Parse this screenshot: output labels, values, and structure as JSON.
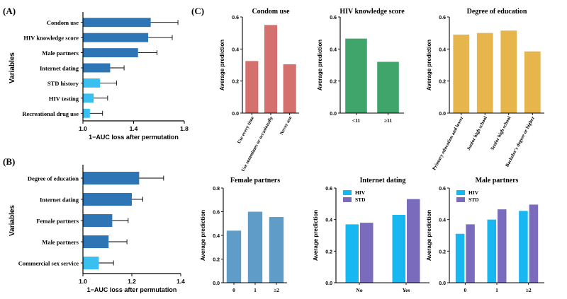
{
  "colors": {
    "dark_blue": "#2e75b6",
    "light_blue": "#39bff0",
    "condom_red": "#d4706e",
    "hiv_green": "#3fa56b",
    "edu_gold": "#e6b64d",
    "female_blue": "#5f9cc8",
    "bright_blue": "#17b7f2",
    "purple": "#7a6bbd",
    "axis": "#000000"
  },
  "chart_data": [
    {
      "id": "A",
      "panel_label": "(A)",
      "type": "bar",
      "orientation": "horizontal",
      "categories": [
        "Condom use",
        "HIV knowledge score",
        "Male partners",
        "Internet dating",
        "STD history",
        "HIV testing",
        "Recreational drug use"
      ],
      "values": [
        1.535,
        1.515,
        1.435,
        1.215,
        1.135,
        1.085,
        1.055
      ],
      "errors": [
        0.215,
        0.19,
        0.15,
        0.11,
        0.13,
        0.11,
        0.1
      ],
      "highlight": [
        false,
        false,
        false,
        false,
        true,
        true,
        true
      ],
      "xlabel": "1−AUC loss after permutation",
      "ylabel": "Variables",
      "xlim": [
        1.0,
        1.8
      ],
      "ticks": [
        "1.0",
        "1.4",
        "1.8"
      ],
      "tick_values": [
        1.0,
        1.4,
        1.8
      ]
    },
    {
      "id": "B",
      "panel_label": "(B)",
      "type": "bar",
      "orientation": "horizontal",
      "categories": [
        "Degree of education",
        "Internet dating",
        "Female partners",
        "Male partners",
        "Commercial sex service"
      ],
      "values": [
        1.23,
        1.2,
        1.12,
        1.105,
        1.065
      ],
      "errors": [
        0.1,
        0.045,
        0.065,
        0.075,
        0.06
      ],
      "highlight": [
        false,
        false,
        false,
        false,
        true
      ],
      "xlabel": "1−AUC loss after permutation",
      "ylabel": "Variables",
      "xlim": [
        1.0,
        1.4
      ],
      "ticks": [
        "1.0",
        "1.2",
        "1.4"
      ],
      "tick_values": [
        1.0,
        1.2,
        1.4
      ]
    },
    {
      "id": "C1",
      "panel_label": "(C)",
      "type": "bar",
      "title": "Condom use",
      "categories": [
        "Use every time",
        "Use sometimes or occasionally",
        "Never use"
      ],
      "values": [
        0.325,
        0.55,
        0.305
      ],
      "ylim": [
        0,
        0.6
      ],
      "yticks": [
        "0.0",
        "0.2",
        "0.4",
        "0.6"
      ],
      "ytick_values": [
        0,
        0.2,
        0.4,
        0.6
      ],
      "ylabel": "Average prediction",
      "rotate_labels": true
    },
    {
      "id": "C2",
      "type": "bar",
      "title": "HIV knowledge score",
      "categories": [
        "<11",
        "≥11"
      ],
      "values": [
        0.465,
        0.32
      ],
      "ylim": [
        0,
        0.6
      ],
      "yticks": [
        "0.0",
        "0.2",
        "0.4",
        "0.6"
      ],
      "ytick_values": [
        0,
        0.2,
        0.4,
        0.6
      ],
      "ylabel": "Average prediction",
      "rotate_labels": false
    },
    {
      "id": "C3",
      "type": "bar",
      "title": "Degree of education",
      "categories": [
        "Primary education and lower",
        "Junior high school",
        "Senior high school",
        "Bachelor's degree or higher"
      ],
      "values": [
        0.49,
        0.5,
        0.515,
        0.385
      ],
      "ylim": [
        0,
        0.6
      ],
      "yticks": [
        "0.0",
        "0.2",
        "0.4",
        "0.6"
      ],
      "ytick_values": [
        0,
        0.2,
        0.4,
        0.6
      ],
      "ylabel": "Average prediction",
      "rotate_labels": true
    },
    {
      "id": "C4",
      "type": "bar",
      "title": "Female partners",
      "categories": [
        "0",
        "1",
        "≥2"
      ],
      "values": [
        0.44,
        0.6,
        0.555
      ],
      "ylim": [
        0,
        0.8
      ],
      "yticks": [
        "0.0",
        "0.2",
        "0.4",
        "0.6",
        "0.8"
      ],
      "ytick_values": [
        0,
        0.2,
        0.4,
        0.6,
        0.8
      ],
      "ylabel": "Average prediction",
      "rotate_labels": false
    },
    {
      "id": "C5",
      "type": "grouped_bar",
      "title": "Internet dating",
      "categories": [
        "No",
        "Yes"
      ],
      "series": [
        {
          "name": "HIV",
          "values": [
            0.37,
            0.43
          ]
        },
        {
          "name": "STD",
          "values": [
            0.38,
            0.53
          ]
        }
      ],
      "ylim": [
        0,
        0.6
      ],
      "yticks": [
        "0.0",
        "0.2",
        "0.4",
        "0.6"
      ],
      "ytick_values": [
        0,
        0.2,
        0.4,
        0.6
      ],
      "ylabel": "Average prediction",
      "legend": "top-left"
    },
    {
      "id": "C6",
      "type": "grouped_bar",
      "title": "Male partners",
      "categories": [
        "0",
        "1",
        "≥2"
      ],
      "series": [
        {
          "name": "HIV",
          "values": [
            0.31,
            0.4,
            0.455
          ]
        },
        {
          "name": "STD",
          "values": [
            0.37,
            0.465,
            0.495
          ]
        }
      ],
      "ylim": [
        0,
        0.6
      ],
      "yticks": [
        "0.0",
        "0.2",
        "0.4",
        "0.6"
      ],
      "ytick_values": [
        0,
        0.2,
        0.4,
        0.6
      ],
      "ylabel": "Average prediction",
      "legend": "top-left"
    }
  ]
}
